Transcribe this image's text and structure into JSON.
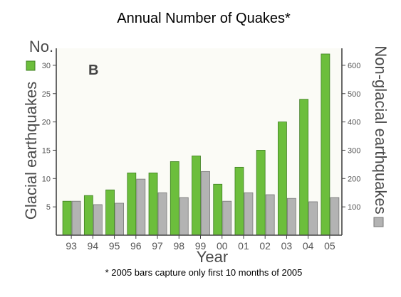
{
  "title": "Annual Number of Quakes*",
  "footnote": "* 2005 bars capture only first 10 months of 2005",
  "colors": {
    "glacial": "#6cbe3c",
    "glacial_edge": "#3f7f22",
    "nonglacial": "#b3b3b3",
    "nonglacial_edge": "#777777",
    "axis": "#444444",
    "plot_bg": "#fbfbf6"
  },
  "chart_data": {
    "type": "bar",
    "panel_label": "B",
    "categories": [
      "93",
      "94",
      "95",
      "96",
      "97",
      "98",
      "99",
      "00",
      "01",
      "02",
      "03",
      "04",
      "05"
    ],
    "series": [
      {
        "name": "Glacial earthquakes",
        "axis": "left",
        "values": [
          6,
          7,
          8,
          11,
          11,
          13,
          14,
          9,
          12,
          15,
          20,
          24,
          32
        ]
      },
      {
        "name": "Non-glacial earthquakes",
        "axis": "right",
        "values": [
          120,
          108,
          113,
          198,
          150,
          133,
          225,
          120,
          150,
          143,
          130,
          118,
          133
        ]
      }
    ],
    "xlabel": "Year",
    "ylabel_left": "Glacial earthquakes",
    "ylabel_left_unit": "No.",
    "ylabel_right": "Non-glacial earthquakes",
    "ylim_left": [
      0,
      33
    ],
    "ylim_right": [
      0,
      660
    ],
    "yticks_left": [
      5,
      10,
      15,
      20,
      25,
      30
    ],
    "yticks_right": [
      100,
      200,
      300,
      400,
      500,
      600
    ],
    "ytick_labels_left": [
      "5",
      "10",
      "15",
      "20",
      "25",
      "30"
    ],
    "ytick_labels_right": [
      "100",
      "200",
      "300",
      "400",
      "500",
      "600"
    ],
    "grid": false,
    "legend": "color swatches next to each y-axis label"
  }
}
